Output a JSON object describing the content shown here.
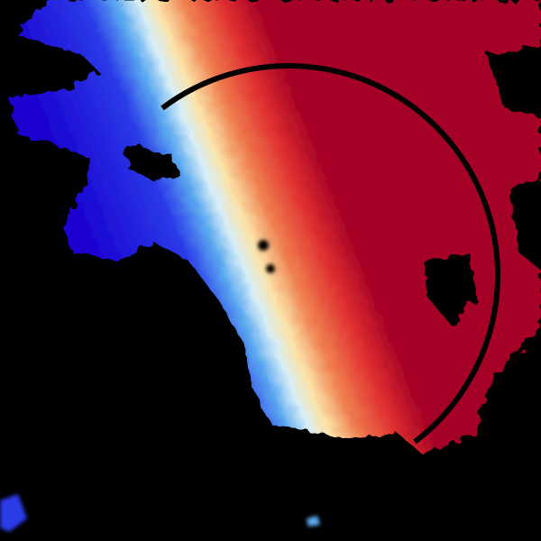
{
  "image": {
    "kind": "doppler-velocity-radar-sweep",
    "colors": {
      "background": "#000000",
      "inbound_strong": "#1a00d0",
      "inbound": "#2a3ae8",
      "inbound_light": "#5aa8f0",
      "near_zero_cool": "#d8eef6",
      "near_zero_warm": "#fbe3a8",
      "outbound_light": "#f08050",
      "outbound": "#e03030",
      "outbound_strong": "#a50026",
      "range_ring": "#000000"
    }
  }
}
